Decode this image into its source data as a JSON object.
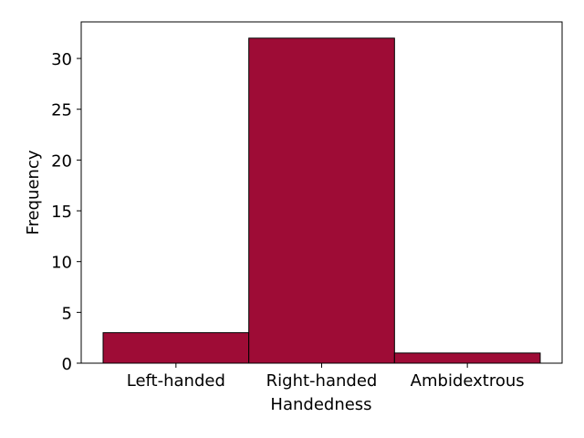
{
  "chart_data": {
    "type": "bar",
    "title": "",
    "xlabel": "Handedness",
    "ylabel": "Frequency",
    "categories": [
      "Left-handed",
      "Right-handed",
      "Ambidextrous"
    ],
    "values": [
      3,
      32,
      1
    ],
    "ylim": [
      0,
      33.6
    ],
    "yticks": [
      0,
      5,
      10,
      15,
      20,
      25,
      30
    ],
    "bar_color": "#9e0c36",
    "edge_color": "#000000",
    "grid": false,
    "legend": "none"
  }
}
